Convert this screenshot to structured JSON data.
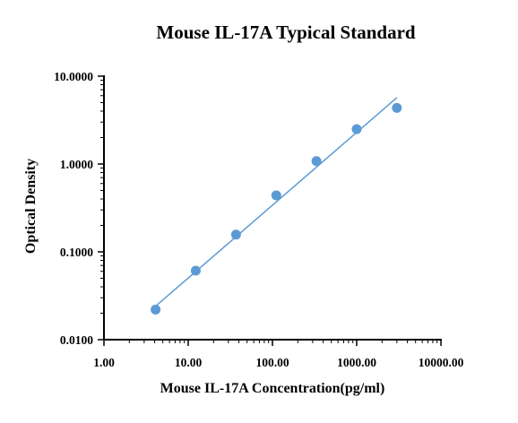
{
  "chart_data": {
    "type": "scatter",
    "title": "Mouse IL-17A Typical Standard",
    "xlabel": "Mouse IL-17A Concentration(pg/ml)",
    "ylabel": "Optical Density",
    "xscale": "log",
    "yscale": "log",
    "xlim": [
      1,
      10000
    ],
    "ylim": [
      0.01,
      10
    ],
    "grid": false,
    "legend": "none",
    "x_ticks": [
      {
        "value": 1,
        "label": "1.00"
      },
      {
        "value": 10,
        "label": "10.00"
      },
      {
        "value": 100,
        "label": "100.00"
      },
      {
        "value": 1000,
        "label": "1000.00"
      },
      {
        "value": 10000,
        "label": "10000.00"
      }
    ],
    "y_ticks": [
      {
        "value": 0.01,
        "label": "0.0100"
      },
      {
        "value": 0.1,
        "label": "0.1000"
      },
      {
        "value": 1,
        "label": "1.0000"
      },
      {
        "value": 10,
        "label": "10.0000"
      }
    ],
    "series": [
      {
        "points": [
          {
            "x": 4.1,
            "y": 0.022
          },
          {
            "x": 12.3,
            "y": 0.061
          },
          {
            "x": 37,
            "y": 0.157
          },
          {
            "x": 111,
            "y": 0.44
          },
          {
            "x": 333,
            "y": 1.08
          },
          {
            "x": 1000,
            "y": 2.49
          },
          {
            "x": 3000,
            "y": 4.36
          }
        ],
        "color": "#5B9BD5"
      }
    ],
    "fit_line": {
      "x": [
        4.1,
        3000
      ],
      "y": [
        0.024,
        5.7
      ],
      "color": "#5B9BD5"
    }
  }
}
